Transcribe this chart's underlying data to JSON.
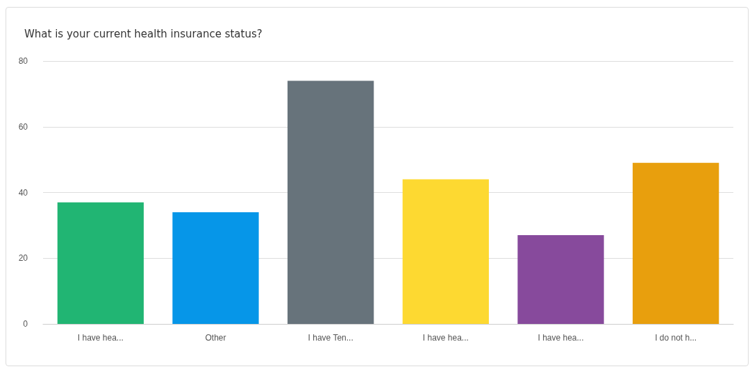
{
  "chart_data": {
    "type": "bar",
    "title": "What is your current health insurance status?",
    "categories": [
      "I have hea...",
      "Other",
      "I have Ten...",
      "I have hea...",
      "I have hea...",
      "I do not h..."
    ],
    "values": [
      37,
      34,
      74,
      44,
      27,
      49
    ],
    "colors": [
      "#21b573",
      "#0696e8",
      "#67737b",
      "#fdd931",
      "#874a9c",
      "#e89f0d"
    ],
    "ylim": [
      0,
      80
    ],
    "yticks": [
      0,
      20,
      40,
      60,
      80
    ],
    "grid": "y"
  }
}
